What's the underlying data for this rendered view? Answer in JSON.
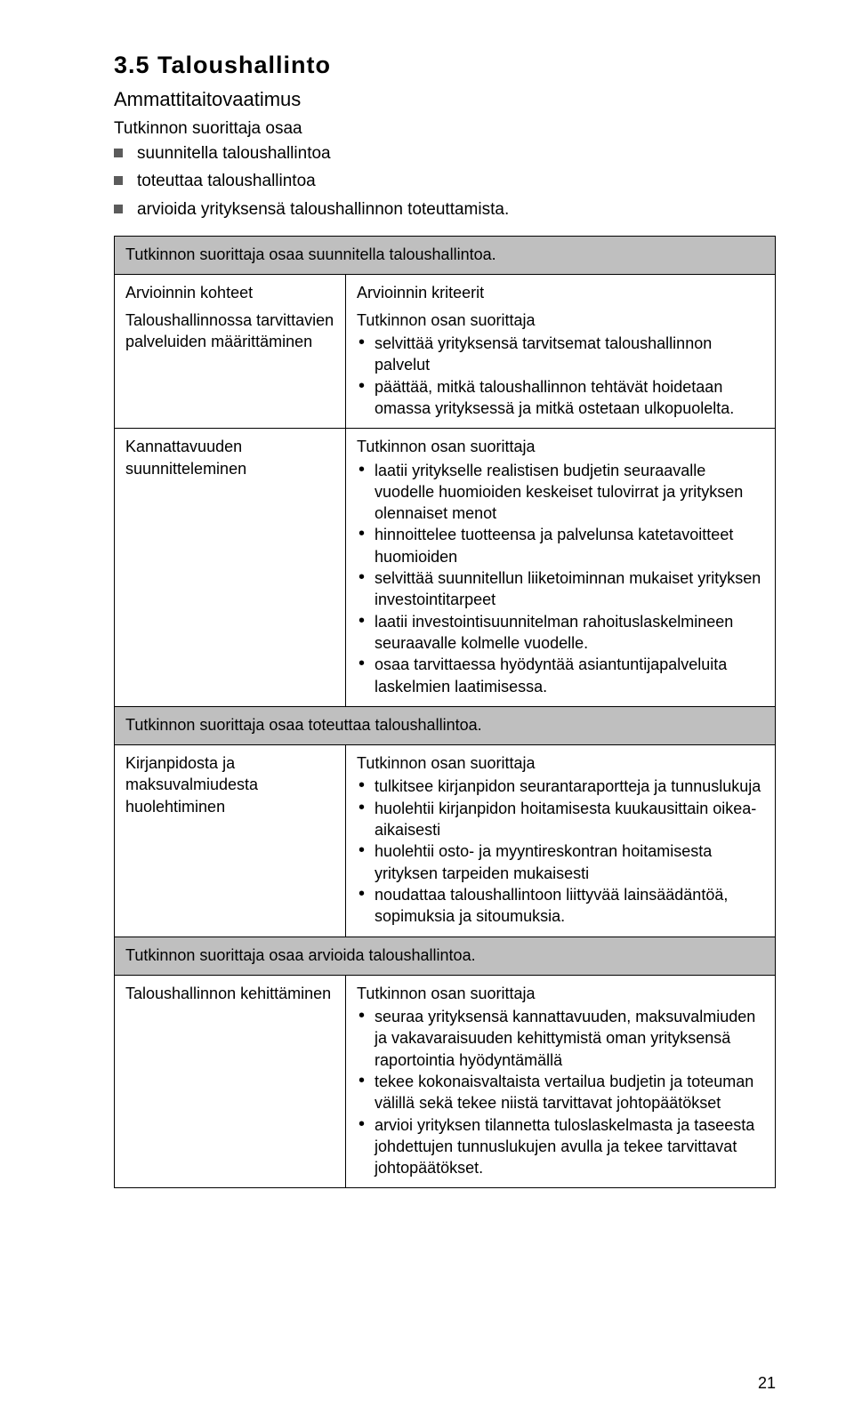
{
  "heading": "3.5   Taloushallinto",
  "subheading": "Ammattitaitovaatimus",
  "intro_lead": "Tutkinnon suorittaja osaa",
  "intro_items": [
    "suunnitella taloushallintoa",
    "toteuttaa taloushallintoa",
    "arvioida yrityksensä taloushallinnon toteuttamista."
  ],
  "colors": {
    "section_bg": "#bfbfbf",
    "border": "#000000",
    "text": "#000000",
    "square_marker": "#5b5b5b",
    "page_bg": "#ffffff"
  },
  "sections": [
    {
      "title": "Tutkinnon suorittaja osaa suunnitella taloushallintoa.",
      "show_headers": true,
      "left_header": "Arvioinnin kohteet",
      "right_header": "Arvioinnin kriteerit",
      "rows": [
        {
          "left": "Taloushallinnossa tarvittavien palveluiden määrittäminen",
          "right_lead": "Tutkinnon osan suorittaja",
          "right_items": [
            "selvittää yrityksensä tarvitsemat taloushallinnon palvelut",
            "päättää, mitkä taloushallinnon tehtävät hoidetaan omassa yrityksessä ja mitkä ostetaan ulkopuolelta."
          ]
        },
        {
          "left": "Kannattavuuden suunnitteleminen",
          "right_lead": "Tutkinnon osan suorittaja",
          "right_items": [
            "laatii yritykselle realistisen budjetin seuraavalle vuodelle huomioiden keskeiset tulovirrat ja yrityksen olennaiset menot",
            "hinnoittelee tuotteensa ja palvelunsa katetavoitteet huomioiden",
            "selvittää suunnitellun liiketoiminnan mukaiset yrityksen investointitarpeet",
            "laatii investointisuunnitelman rahoituslaskelmineen seuraavalle kolmelle vuodelle.",
            "osaa tarvittaessa hyödyntää asiantuntijapalveluita laskelmien laatimisessa."
          ]
        }
      ]
    },
    {
      "title": "Tutkinnon suorittaja osaa toteuttaa taloushallintoa.",
      "show_headers": false,
      "rows": [
        {
          "left": "Kirjanpidosta ja maksuvalmiudesta huolehtiminen",
          "right_lead": "Tutkinnon osan suorittaja",
          "right_items": [
            "tulkitsee kirjanpidon seurantaraportteja ja tunnuslukuja",
            "huolehtii kirjanpidon hoitamisesta kuukausittain oikea-aikaisesti",
            "huolehtii osto- ja myyntireskontran hoitamisesta yrityksen tarpeiden mukaisesti",
            "noudattaa taloushallintoon liittyvää lainsäädäntöä, sopimuksia ja sitoumuksia."
          ]
        }
      ]
    },
    {
      "title": "Tutkinnon suorittaja osaa arvioida taloushallintoa.",
      "show_headers": false,
      "rows": [
        {
          "left": "Taloushallinnon kehittäminen",
          "right_lead": "Tutkinnon osan suorittaja",
          "right_items": [
            "seuraa yrityksensä kannattavuuden, maksuvalmiuden ja vakavaraisuuden kehittymistä oman yrityksensä raportointia hyödyntämällä",
            "tekee kokonaisvaltaista vertailua budjetin ja toteuman välillä sekä tekee niistä tarvittavat johtopäätökset",
            "arvioi yrityksen tilannetta tuloslaskelmasta ja taseesta johdettujen tunnuslukujen avulla ja tekee tarvittavat johtopäätökset."
          ]
        }
      ]
    }
  ],
  "page_number": "21"
}
